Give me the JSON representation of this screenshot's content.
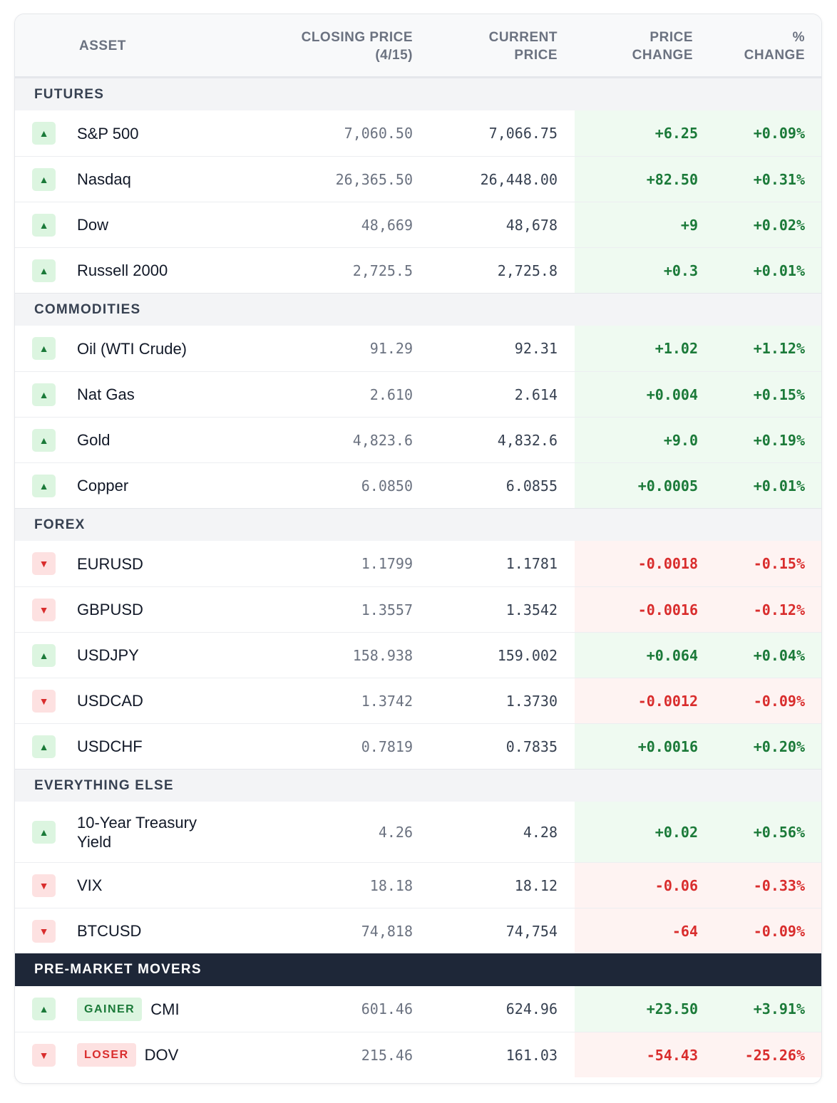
{
  "header": {
    "asset": "ASSET",
    "closing": [
      "CLOSING PRICE",
      "(4/15)"
    ],
    "current": [
      "CURRENT",
      "PRICE"
    ],
    "change": [
      "PRICE",
      "CHANGE"
    ],
    "pct": [
      "%",
      "CHANGE"
    ]
  },
  "colors": {
    "up": "#1b7a39",
    "down": "#d92d2d",
    "dark_section": "#1e2738"
  },
  "sections": [
    {
      "title": "FUTURES",
      "rows": [
        {
          "dir": "up",
          "name": "S&P 500",
          "close": "7,060.50",
          "current": "7,066.75",
          "change": "+6.25",
          "pct": "+0.09%"
        },
        {
          "dir": "up",
          "name": "Nasdaq",
          "close": "26,365.50",
          "current": "26,448.00",
          "change": "+82.50",
          "pct": "+0.31%"
        },
        {
          "dir": "up",
          "name": "Dow",
          "close": "48,669",
          "current": "48,678",
          "change": "+9",
          "pct": "+0.02%"
        },
        {
          "dir": "up",
          "name": "Russell 2000",
          "close": "2,725.5",
          "current": "2,725.8",
          "change": "+0.3",
          "pct": "+0.01%"
        }
      ]
    },
    {
      "title": "COMMODITIES",
      "rows": [
        {
          "dir": "up",
          "name": "Oil (WTI Crude)",
          "close": "91.29",
          "current": "92.31",
          "change": "+1.02",
          "pct": "+1.12%"
        },
        {
          "dir": "up",
          "name": "Nat Gas",
          "close": "2.610",
          "current": "2.614",
          "change": "+0.004",
          "pct": "+0.15%"
        },
        {
          "dir": "up",
          "name": "Gold",
          "close": "4,823.6",
          "current": "4,832.6",
          "change": "+9.0",
          "pct": "+0.19%"
        },
        {
          "dir": "up",
          "name": "Copper",
          "close": "6.0850",
          "current": "6.0855",
          "change": "+0.0005",
          "pct": "+0.01%"
        }
      ]
    },
    {
      "title": "FOREX",
      "rows": [
        {
          "dir": "down",
          "name": "EURUSD",
          "close": "1.1799",
          "current": "1.1781",
          "change": "-0.0018",
          "pct": "-0.15%"
        },
        {
          "dir": "down",
          "name": "GBPUSD",
          "close": "1.3557",
          "current": "1.3542",
          "change": "-0.0016",
          "pct": "-0.12%"
        },
        {
          "dir": "up",
          "name": "USDJPY",
          "close": "158.938",
          "current": "159.002",
          "change": "+0.064",
          "pct": "+0.04%"
        },
        {
          "dir": "down",
          "name": "USDCAD",
          "close": "1.3742",
          "current": "1.3730",
          "change": "-0.0012",
          "pct": "-0.09%"
        },
        {
          "dir": "up",
          "name": "USDCHF",
          "close": "0.7819",
          "current": "0.7835",
          "change": "+0.0016",
          "pct": "+0.20%"
        }
      ]
    },
    {
      "title": "EVERYTHING ELSE",
      "rows": [
        {
          "dir": "up",
          "name": "10-Year Treasury Yield",
          "close": "4.26",
          "current": "4.28",
          "change": "+0.02",
          "pct": "+0.56%",
          "tall": true
        },
        {
          "dir": "down",
          "name": "VIX",
          "close": "18.18",
          "current": "18.12",
          "change": "-0.06",
          "pct": "-0.33%"
        },
        {
          "dir": "down",
          "name": "BTCUSD",
          "close": "74,818",
          "current": "74,754",
          "change": "-64",
          "pct": "-0.09%"
        }
      ]
    },
    {
      "title": "PRE-MARKET MOVERS",
      "dark": true,
      "rows": [
        {
          "dir": "up",
          "badge": "GAINER",
          "name": "CMI",
          "close": "601.46",
          "current": "624.96",
          "change": "+23.50",
          "pct": "+3.91%"
        },
        {
          "dir": "down",
          "badge": "LOSER",
          "name": "DOV",
          "close": "215.46",
          "current": "161.03",
          "change": "-54.43",
          "pct": "-25.26%"
        }
      ]
    }
  ]
}
